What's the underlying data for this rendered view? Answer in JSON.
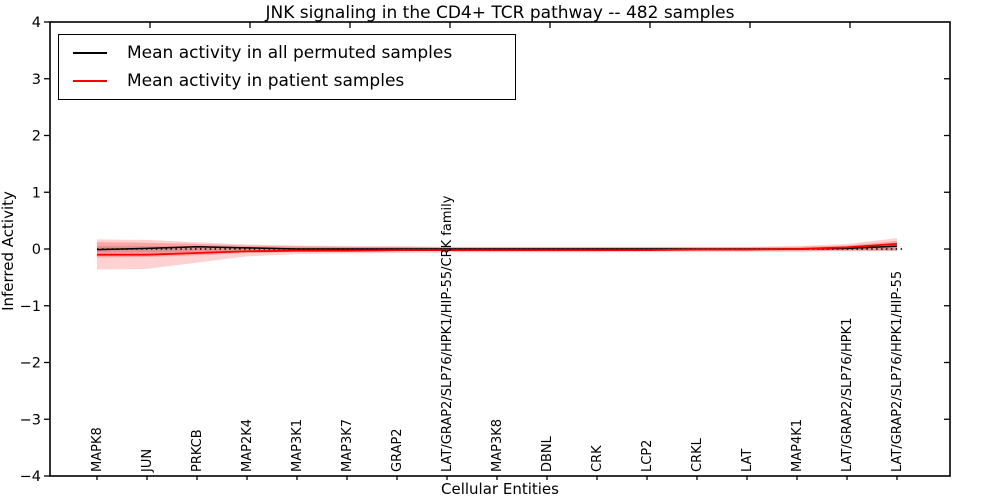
{
  "figure": {
    "background": "#ffffff",
    "frame_color": "#000000"
  },
  "chart_data": {
    "type": "line",
    "title": "JNK signaling in the CD4+ TCR pathway -- 482 samples",
    "xlabel": "Cellular Entities",
    "ylabel": "Inferred Activity",
    "ylim": [
      -4,
      4
    ],
    "yticks": [
      4,
      3,
      2,
      1,
      0,
      -1,
      -2,
      -3,
      -4
    ],
    "ytick_labels": [
      "4",
      "3",
      "2",
      "1",
      "0",
      "−1",
      "−2",
      "−3",
      "−4"
    ],
    "grid": false,
    "categories": [
      "MAPK8",
      "JUN",
      "PRKCB",
      "MAP2K4",
      "MAP3K1",
      "MAP3K7",
      "GRAP2",
      "LAT/GRAP2/SLP76/HPK1/HIP-55/CRK family",
      "MAP3K8",
      "DBNL",
      "CRK",
      "LCP2",
      "CRKL",
      "LAT",
      "MAP4K1",
      "LAT/GRAP2/SLP76/HPK1",
      "LAT/GRAP2/SLP76/HPK1/HIP-55"
    ],
    "series": [
      {
        "name": "Mean activity in all permuted samples",
        "color": "#000000",
        "values": [
          -0.01,
          0.01,
          0.04,
          0.02,
          0.0,
          0.0,
          0.0,
          0.0,
          0.0,
          0.0,
          0.0,
          0.0,
          0.0,
          0.0,
          0.0,
          0.01,
          0.05
        ]
      },
      {
        "name": "Mean activity in patient samples",
        "color": "#ff0000",
        "values": [
          -0.1,
          -0.1,
          -0.07,
          -0.04,
          -0.03,
          -0.03,
          -0.02,
          -0.02,
          -0.02,
          -0.02,
          -0.02,
          -0.02,
          -0.01,
          -0.01,
          0.0,
          0.03,
          0.09
        ]
      }
    ],
    "zero_line": {
      "y": 0,
      "style": "dotted",
      "color": "#000000"
    },
    "bands": [
      {
        "name": "patient-std-outer",
        "color": "rgba(255,0,0,0.18)",
        "top": [
          0.17,
          0.16,
          0.12,
          0.08,
          0.06,
          0.05,
          0.05,
          0.04,
          0.04,
          0.04,
          0.04,
          0.04,
          0.04,
          0.04,
          0.05,
          0.09,
          0.19
        ],
        "bottom": [
          -0.36,
          -0.35,
          -0.24,
          -0.13,
          -0.09,
          -0.08,
          -0.07,
          -0.06,
          -0.06,
          -0.06,
          -0.06,
          -0.05,
          -0.05,
          -0.05,
          -0.05,
          -0.04,
          -0.04
        ]
      },
      {
        "name": "patient-std-inner",
        "color": "rgba(255,0,0,0.22)",
        "top": [
          0.12,
          0.11,
          0.09,
          0.06,
          0.05,
          0.04,
          0.04,
          0.03,
          0.03,
          0.03,
          0.03,
          0.03,
          0.03,
          0.03,
          0.04,
          0.06,
          0.14
        ],
        "bottom": [
          -0.15,
          -0.14,
          -0.11,
          -0.07,
          -0.05,
          -0.05,
          -0.04,
          -0.04,
          -0.04,
          -0.04,
          -0.04,
          -0.03,
          -0.03,
          -0.03,
          -0.03,
          -0.02,
          -0.02
        ]
      },
      {
        "name": "permuted-std",
        "color": "rgba(60,60,60,0.16)",
        "top": [
          0.05,
          0.05,
          0.05,
          0.04,
          0.03,
          0.03,
          0.03,
          0.02,
          0.02,
          0.02,
          0.02,
          0.02,
          0.02,
          0.02,
          0.02,
          0.03,
          0.04
        ],
        "bottom": [
          -0.06,
          -0.06,
          -0.05,
          -0.04,
          -0.03,
          -0.03,
          -0.03,
          -0.02,
          -0.02,
          -0.02,
          -0.02,
          -0.02,
          -0.02,
          -0.02,
          -0.02,
          -0.03,
          -0.03
        ]
      }
    ],
    "legend": {
      "position": "upper left",
      "entries": [
        {
          "label": "Mean activity in all permuted samples",
          "color": "#000000"
        },
        {
          "label": "Mean activity in patient samples",
          "color": "#ff0000"
        }
      ]
    }
  }
}
